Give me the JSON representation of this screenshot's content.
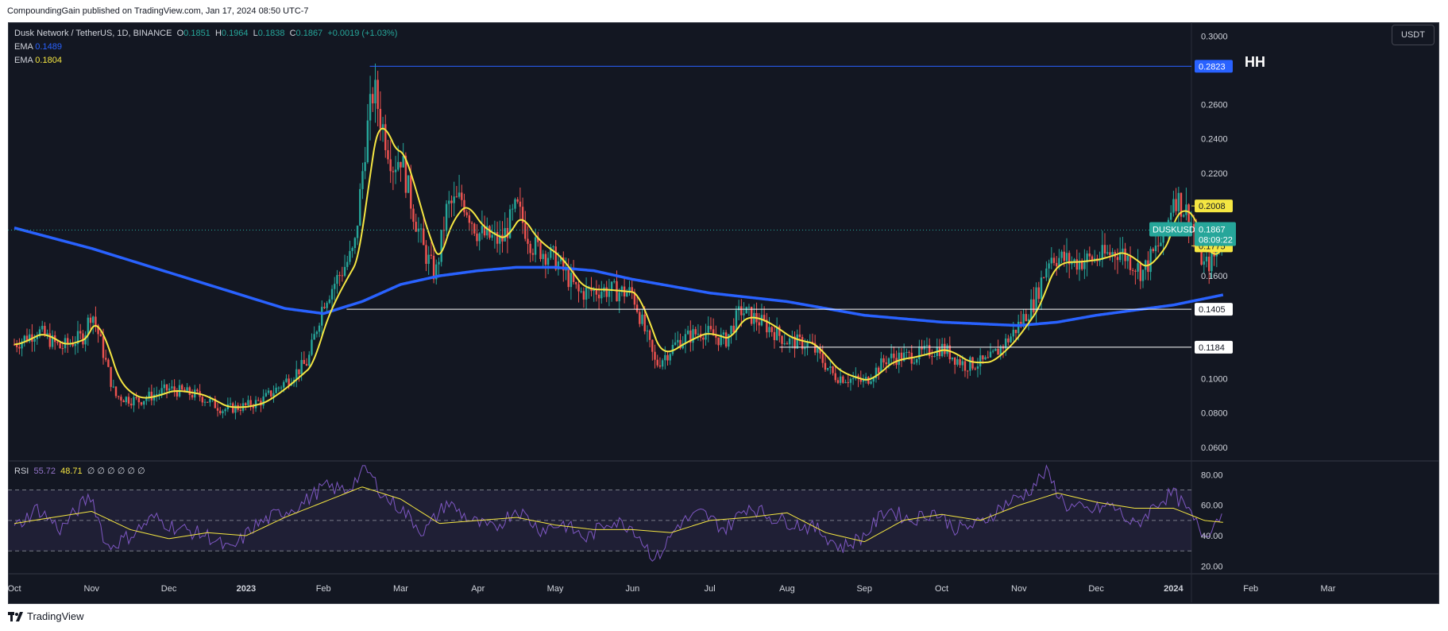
{
  "header": {
    "published_text": "CompoundingGain published on TradingView.com, Jan 17, 2024 08:50 UTC-7"
  },
  "footer": {
    "brand": "TradingView"
  },
  "toolbar": {
    "currency_label": "USDT"
  },
  "annotation": {
    "hh": "HH"
  },
  "legend": {
    "symbol": "Dusk Network / TetherUS, 1D, BINANCE",
    "o_label": "O",
    "o_value": "0.1851",
    "h_label": "H",
    "h_value": "0.1964",
    "l_label": "L",
    "l_value": "0.1838",
    "c_label": "C",
    "c_value": "0.1867",
    "change": "+0.0019 (+1.03%)",
    "ema1_label": "EMA",
    "ema1_value": "0.1489",
    "ema2_label": "EMA",
    "ema2_value": "0.1804"
  },
  "rsi_legend": {
    "label": "RSI",
    "value": "55.72",
    "ma_value": "48.71",
    "extras": "∅ ∅ ∅ ∅ ∅ ∅"
  },
  "colors": {
    "background": "#131722",
    "up": "#26a69a",
    "down": "#ef5350",
    "ema_long": "#2962ff",
    "ema_short": "#f5e642",
    "rsi": "#7e57c2",
    "rsi_ma": "#f5e642",
    "hline_blue": "#2962ff",
    "hline_white": "#ffffff",
    "hline_yellow": "#f5e642"
  },
  "chart_data": {
    "type": "candlestick",
    "title": "Dusk Network / TetherUS, 1D, BINANCE",
    "price_axis": {
      "ticks": [
        "0.3000",
        "0.2600",
        "0.2400",
        "0.2200",
        "0.1600",
        "0.1000",
        "0.0800",
        "0.0600"
      ],
      "range": [
        0.052,
        0.308
      ]
    },
    "x_axis": {
      "labels": [
        "Oct",
        "Nov",
        "Dec",
        "2023",
        "Feb",
        "Mar",
        "Apr",
        "May",
        "Jun",
        "Jul",
        "Aug",
        "Sep",
        "Oct",
        "Nov",
        "Dec",
        "2024",
        "Feb",
        "Mar"
      ],
      "bold_labels": [
        "2023",
        "2024"
      ]
    },
    "price_labels": [
      {
        "text": "0.2823",
        "value": 0.2823,
        "style": "blue"
      },
      {
        "text": "0.2008",
        "value": 0.2008,
        "style": "yellow"
      },
      {
        "text": "0.1775",
        "value": 0.1775,
        "style": "yellow"
      },
      {
        "text": "0.1405",
        "value": 0.1405,
        "style": "white"
      },
      {
        "text": "0.1184",
        "value": 0.1184,
        "style": "white"
      }
    ],
    "current": {
      "symbol": "DUSKUSDT",
      "price": "0.1867",
      "countdown": "08:09:22",
      "value": 0.1867
    },
    "horizontal_lines": [
      {
        "value": 0.2823,
        "from_month": 4.6,
        "style": "blue"
      },
      {
        "value": 0.2008,
        "from_month": 15.6,
        "style": "yellow"
      },
      {
        "value": 0.1775,
        "from_month": 15.6,
        "style": "yellow"
      },
      {
        "value": 0.1405,
        "from_month": 4.3,
        "style": "white"
      },
      {
        "value": 0.1184,
        "from_month": 9.9,
        "style": "white"
      }
    ],
    "close_series": [
      {
        "m": 0.0,
        "v": 0.12
      },
      {
        "m": 0.3,
        "v": 0.128
      },
      {
        "m": 0.6,
        "v": 0.118
      },
      {
        "m": 0.9,
        "v": 0.125
      },
      {
        "m": 1.0,
        "v": 0.14
      },
      {
        "m": 1.1,
        "v": 0.124
      },
      {
        "m": 1.3,
        "v": 0.09
      },
      {
        "m": 1.6,
        "v": 0.087
      },
      {
        "m": 2.0,
        "v": 0.094
      },
      {
        "m": 2.4,
        "v": 0.09
      },
      {
        "m": 2.7,
        "v": 0.082
      },
      {
        "m": 3.0,
        "v": 0.084
      },
      {
        "m": 3.2,
        "v": 0.087
      },
      {
        "m": 3.5,
        "v": 0.098
      },
      {
        "m": 3.8,
        "v": 0.11
      },
      {
        "m": 4.0,
        "v": 0.145
      },
      {
        "m": 4.2,
        "v": 0.16
      },
      {
        "m": 4.4,
        "v": 0.175
      },
      {
        "m": 4.55,
        "v": 0.24
      },
      {
        "m": 4.65,
        "v": 0.27
      },
      {
        "m": 4.75,
        "v": 0.25
      },
      {
        "m": 4.9,
        "v": 0.225
      },
      {
        "m": 5.0,
        "v": 0.23
      },
      {
        "m": 5.15,
        "v": 0.2
      },
      {
        "m": 5.3,
        "v": 0.175
      },
      {
        "m": 5.45,
        "v": 0.16
      },
      {
        "m": 5.6,
        "v": 0.2
      },
      {
        "m": 5.8,
        "v": 0.205
      },
      {
        "m": 6.0,
        "v": 0.185
      },
      {
        "m": 6.3,
        "v": 0.18
      },
      {
        "m": 6.5,
        "v": 0.2
      },
      {
        "m": 6.7,
        "v": 0.178
      },
      {
        "m": 7.0,
        "v": 0.17
      },
      {
        "m": 7.3,
        "v": 0.15
      },
      {
        "m": 7.6,
        "v": 0.152
      },
      {
        "m": 8.0,
        "v": 0.15
      },
      {
        "m": 8.3,
        "v": 0.108
      },
      {
        "m": 8.6,
        "v": 0.122
      },
      {
        "m": 8.9,
        "v": 0.128
      },
      {
        "m": 9.2,
        "v": 0.122
      },
      {
        "m": 9.4,
        "v": 0.14
      },
      {
        "m": 9.7,
        "v": 0.132
      },
      {
        "m": 10.0,
        "v": 0.122
      },
      {
        "m": 10.3,
        "v": 0.12
      },
      {
        "m": 10.6,
        "v": 0.102
      },
      {
        "m": 11.0,
        "v": 0.098
      },
      {
        "m": 11.3,
        "v": 0.112
      },
      {
        "m": 11.6,
        "v": 0.113
      },
      {
        "m": 12.0,
        "v": 0.118
      },
      {
        "m": 12.3,
        "v": 0.108
      },
      {
        "m": 12.6,
        "v": 0.11
      },
      {
        "m": 12.9,
        "v": 0.125
      },
      {
        "m": 13.2,
        "v": 0.145
      },
      {
        "m": 13.4,
        "v": 0.172
      },
      {
        "m": 13.7,
        "v": 0.168
      },
      {
        "m": 14.0,
        "v": 0.17
      },
      {
        "m": 14.3,
        "v": 0.175
      },
      {
        "m": 14.6,
        "v": 0.162
      },
      {
        "m": 14.9,
        "v": 0.185
      },
      {
        "m": 15.0,
        "v": 0.208
      },
      {
        "m": 15.2,
        "v": 0.195
      },
      {
        "m": 15.4,
        "v": 0.165
      },
      {
        "m": 15.55,
        "v": 0.172
      },
      {
        "m": 15.65,
        "v": 0.187
      }
    ],
    "ema_long_series": [
      {
        "m": 0.0,
        "v": 0.188
      },
      {
        "m": 1.0,
        "v": 0.176
      },
      {
        "m": 2.0,
        "v": 0.162
      },
      {
        "m": 3.0,
        "v": 0.148
      },
      {
        "m": 3.5,
        "v": 0.141
      },
      {
        "m": 4.0,
        "v": 0.138
      },
      {
        "m": 4.5,
        "v": 0.145
      },
      {
        "m": 5.0,
        "v": 0.155
      },
      {
        "m": 5.5,
        "v": 0.16
      },
      {
        "m": 6.0,
        "v": 0.163
      },
      {
        "m": 6.5,
        "v": 0.165
      },
      {
        "m": 7.0,
        "v": 0.165
      },
      {
        "m": 7.5,
        "v": 0.163
      },
      {
        "m": 8.0,
        "v": 0.158
      },
      {
        "m": 9.0,
        "v": 0.15
      },
      {
        "m": 10.0,
        "v": 0.145
      },
      {
        "m": 11.0,
        "v": 0.137
      },
      {
        "m": 12.0,
        "v": 0.133
      },
      {
        "m": 13.0,
        "v": 0.131
      },
      {
        "m": 13.5,
        "v": 0.133
      },
      {
        "m": 14.0,
        "v": 0.137
      },
      {
        "m": 15.0,
        "v": 0.143
      },
      {
        "m": 15.65,
        "v": 0.149
      }
    ],
    "rsi": {
      "range": [
        15,
        88
      ],
      "ticks": [
        "80.00",
        "60.00",
        "40.00",
        "20.00"
      ],
      "band": [
        30,
        70
      ],
      "mid": 50,
      "rsi_series": [
        {
          "m": 0.0,
          "v": 45
        },
        {
          "m": 0.3,
          "v": 58
        },
        {
          "m": 0.6,
          "v": 44
        },
        {
          "m": 0.9,
          "v": 62
        },
        {
          "m": 1.0,
          "v": 66
        },
        {
          "m": 1.2,
          "v": 32
        },
        {
          "m": 1.5,
          "v": 40
        },
        {
          "m": 1.8,
          "v": 52
        },
        {
          "m": 2.1,
          "v": 45
        },
        {
          "m": 2.5,
          "v": 40
        },
        {
          "m": 2.8,
          "v": 30
        },
        {
          "m": 3.1,
          "v": 46
        },
        {
          "m": 3.4,
          "v": 54
        },
        {
          "m": 3.7,
          "v": 60
        },
        {
          "m": 4.0,
          "v": 72
        },
        {
          "m": 4.3,
          "v": 70
        },
        {
          "m": 4.55,
          "v": 84
        },
        {
          "m": 4.8,
          "v": 65
        },
        {
          "m": 5.0,
          "v": 58
        },
        {
          "m": 5.3,
          "v": 42
        },
        {
          "m": 5.6,
          "v": 62
        },
        {
          "m": 5.9,
          "v": 50
        },
        {
          "m": 6.2,
          "v": 44
        },
        {
          "m": 6.5,
          "v": 58
        },
        {
          "m": 6.8,
          "v": 44
        },
        {
          "m": 7.1,
          "v": 48
        },
        {
          "m": 7.4,
          "v": 38
        },
        {
          "m": 7.7,
          "v": 50
        },
        {
          "m": 8.0,
          "v": 46
        },
        {
          "m": 8.3,
          "v": 24
        },
        {
          "m": 8.6,
          "v": 48
        },
        {
          "m": 8.9,
          "v": 55
        },
        {
          "m": 9.2,
          "v": 44
        },
        {
          "m": 9.5,
          "v": 60
        },
        {
          "m": 9.8,
          "v": 52
        },
        {
          "m": 10.1,
          "v": 48
        },
        {
          "m": 10.4,
          "v": 44
        },
        {
          "m": 10.7,
          "v": 32
        },
        {
          "m": 11.0,
          "v": 40
        },
        {
          "m": 11.3,
          "v": 58
        },
        {
          "m": 11.6,
          "v": 50
        },
        {
          "m": 11.9,
          "v": 56
        },
        {
          "m": 12.2,
          "v": 44
        },
        {
          "m": 12.5,
          "v": 48
        },
        {
          "m": 12.8,
          "v": 60
        },
        {
          "m": 13.1,
          "v": 68
        },
        {
          "m": 13.35,
          "v": 82
        },
        {
          "m": 13.6,
          "v": 60
        },
        {
          "m": 13.9,
          "v": 56
        },
        {
          "m": 14.2,
          "v": 60
        },
        {
          "m": 14.5,
          "v": 46
        },
        {
          "m": 14.8,
          "v": 62
        },
        {
          "m": 15.0,
          "v": 68
        },
        {
          "m": 15.2,
          "v": 55
        },
        {
          "m": 15.4,
          "v": 40
        },
        {
          "m": 15.55,
          "v": 50
        },
        {
          "m": 15.65,
          "v": 55.72
        }
      ],
      "ma_series": [
        {
          "m": 0.0,
          "v": 48
        },
        {
          "m": 0.5,
          "v": 52
        },
        {
          "m": 1.0,
          "v": 56
        },
        {
          "m": 1.5,
          "v": 44
        },
        {
          "m": 2.0,
          "v": 38
        },
        {
          "m": 2.5,
          "v": 42
        },
        {
          "m": 3.0,
          "v": 40
        },
        {
          "m": 3.5,
          "v": 52
        },
        {
          "m": 4.0,
          "v": 62
        },
        {
          "m": 4.5,
          "v": 72
        },
        {
          "m": 5.0,
          "v": 64
        },
        {
          "m": 5.5,
          "v": 48
        },
        {
          "m": 6.0,
          "v": 50
        },
        {
          "m": 6.5,
          "v": 52
        },
        {
          "m": 7.0,
          "v": 47
        },
        {
          "m": 7.5,
          "v": 44
        },
        {
          "m": 8.0,
          "v": 44
        },
        {
          "m": 8.5,
          "v": 42
        },
        {
          "m": 9.0,
          "v": 50
        },
        {
          "m": 9.5,
          "v": 52
        },
        {
          "m": 10.0,
          "v": 55
        },
        {
          "m": 10.5,
          "v": 42
        },
        {
          "m": 11.0,
          "v": 36
        },
        {
          "m": 11.5,
          "v": 50
        },
        {
          "m": 12.0,
          "v": 54
        },
        {
          "m": 12.5,
          "v": 50
        },
        {
          "m": 13.0,
          "v": 60
        },
        {
          "m": 13.5,
          "v": 68
        },
        {
          "m": 14.0,
          "v": 62
        },
        {
          "m": 14.5,
          "v": 58
        },
        {
          "m": 15.0,
          "v": 58
        },
        {
          "m": 15.4,
          "v": 50
        },
        {
          "m": 15.65,
          "v": 48.71
        }
      ]
    }
  }
}
